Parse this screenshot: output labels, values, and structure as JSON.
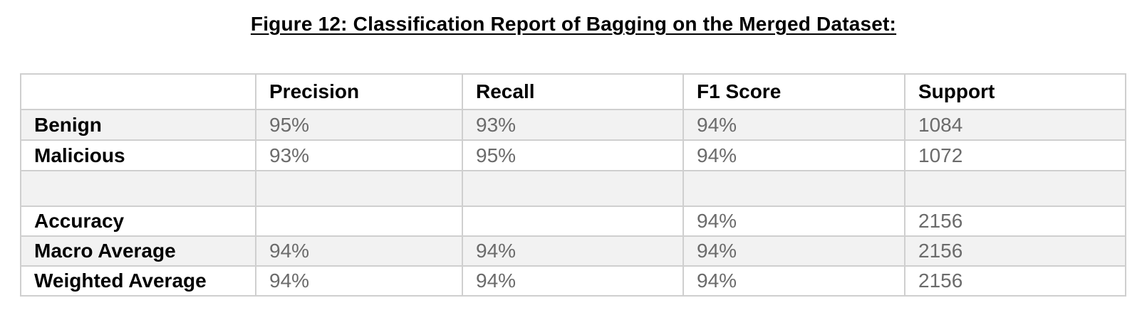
{
  "title": "Figure 12: Classification Report of Bagging on the Merged Dataset:",
  "table": {
    "headers": [
      "",
      "Precision",
      "Recall",
      "F1 Score",
      "Support"
    ],
    "rows": [
      {
        "label": "Benign",
        "precision": "95%",
        "recall": "93%",
        "f1": "94%",
        "support": "1084"
      },
      {
        "label": "Malicious",
        "precision": "93%",
        "recall": "95%",
        "f1": "94%",
        "support": "1072"
      },
      {
        "label": "",
        "precision": "",
        "recall": "",
        "f1": "",
        "support": ""
      },
      {
        "label": "Accuracy",
        "precision": "",
        "recall": "",
        "f1": "94%",
        "support": "2156"
      },
      {
        "label": "Macro Average",
        "precision": "94%",
        "recall": "94%",
        "f1": "94%",
        "support": "2156"
      },
      {
        "label": "Weighted Average",
        "precision": "94%",
        "recall": "94%",
        "f1": "94%",
        "support": "2156"
      }
    ]
  }
}
